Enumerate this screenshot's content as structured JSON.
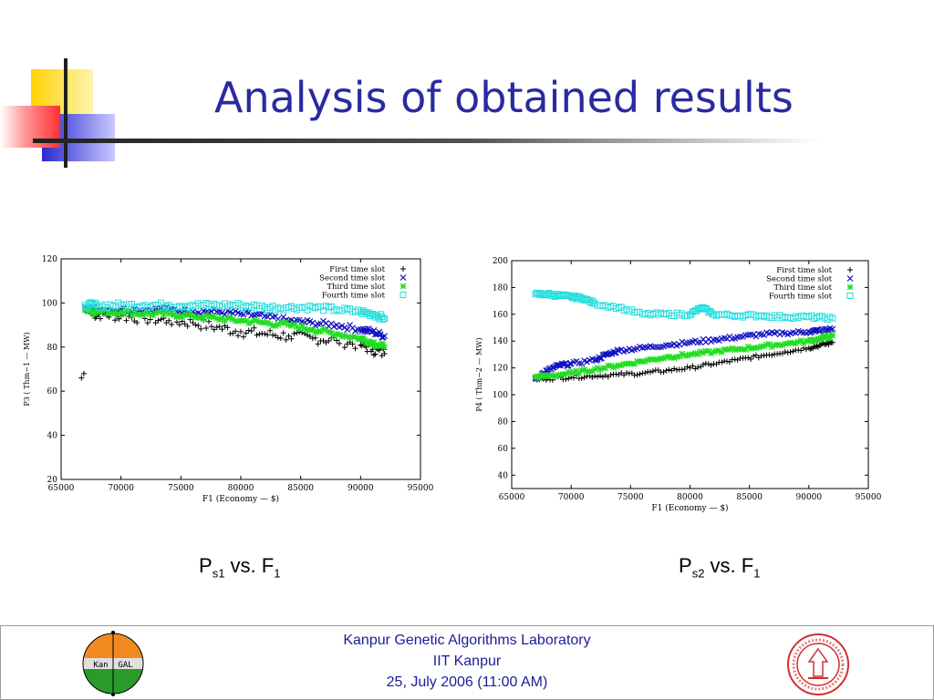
{
  "slide": {
    "title": "Analysis of obtained results",
    "caption_left": {
      "base": "P",
      "sub": "s1",
      "mid": " vs. F",
      "sub2": "1"
    },
    "caption_right": {
      "base": "P",
      "sub": "s2",
      "mid": " vs. F",
      "sub2": "1"
    }
  },
  "footer": {
    "line1": "Kanpur Genetic Algorithms Laboratory",
    "line2": "IIT Kanpur",
    "line3": "25, July 2006 (11:00 AM)",
    "logo_left_text": "Kan  GAL"
  },
  "colors": {
    "title": "#2a2aa0",
    "series_first": "#000000",
    "series_second": "#1010c0",
    "series_third": "#22dd22",
    "series_fourth": "#22dddd"
  },
  "chart_data": [
    {
      "type": "scatter",
      "xlabel": "F1 (Economy — $)",
      "ylabel": "P3 ( Thm−1 — MW)",
      "xlim": [
        65000,
        95000
      ],
      "ylim": [
        20,
        120
      ],
      "xticks": [
        65000,
        70000,
        75000,
        80000,
        85000,
        90000,
        95000
      ],
      "yticks": [
        20,
        40,
        60,
        80,
        100,
        120
      ],
      "legend_position": "top-right",
      "series": [
        {
          "name": "First time slot",
          "marker": "+",
          "x": [
            66700,
            66900,
            67500,
            68500,
            70000,
            72000,
            74000,
            76000,
            78000,
            80000,
            82000,
            84000,
            86000,
            88000,
            90000,
            91000,
            92000
          ],
          "y": [
            66,
            68,
            95,
            95,
            94,
            93,
            92,
            91,
            89,
            87,
            86,
            85,
            84,
            83,
            81,
            79,
            77
          ]
        },
        {
          "name": "Second time slot",
          "marker": "x",
          "x": [
            67000,
            68000,
            70000,
            72000,
            74000,
            76000,
            78000,
            80000,
            82000,
            84000,
            86000,
            88000,
            90000,
            91000,
            92000
          ],
          "y": [
            98,
            97,
            97,
            97,
            97,
            96,
            96,
            95,
            94,
            92,
            91,
            90,
            88,
            87,
            85
          ]
        },
        {
          "name": "Third time slot",
          "marker": "*",
          "x": [
            67000,
            68000,
            70000,
            72000,
            74000,
            76000,
            78000,
            80000,
            82000,
            84000,
            86000,
            88000,
            90000,
            91000,
            92000
          ],
          "y": [
            97,
            96,
            96,
            95,
            95,
            94,
            93,
            92,
            91,
            90,
            88,
            86,
            84,
            82,
            80
          ]
        },
        {
          "name": "Fourth time slot",
          "marker": "square",
          "x": [
            67000,
            68000,
            70000,
            72000,
            74000,
            76000,
            78000,
            80000,
            82000,
            84000,
            86000,
            88000,
            90000,
            91000,
            92000
          ],
          "y": [
            99,
            99,
            99,
            99,
            99,
            99,
            99,
            99,
            98,
            98,
            98,
            97,
            96,
            95,
            93
          ]
        }
      ]
    },
    {
      "type": "scatter",
      "xlabel": "F1 (Economy — $)",
      "ylabel": "P4 ( Thm−2 — MW)",
      "xlim": [
        65000,
        95000
      ],
      "ylim": [
        30,
        200
      ],
      "xticks": [
        65000,
        70000,
        75000,
        80000,
        85000,
        90000,
        95000
      ],
      "yticks": [
        40,
        60,
        80,
        100,
        120,
        140,
        160,
        180,
        200
      ],
      "legend_position": "top-right",
      "series": [
        {
          "name": "First time slot",
          "marker": "+",
          "x": [
            67000,
            68000,
            70000,
            72000,
            74000,
            76000,
            78000,
            80000,
            82000,
            84000,
            86000,
            88000,
            90000,
            91000,
            92000
          ],
          "y": [
            112,
            112,
            113,
            114,
            115,
            116,
            118,
            120,
            123,
            126,
            129,
            132,
            135,
            137,
            139
          ]
        },
        {
          "name": "Second time slot",
          "marker": "x",
          "x": [
            67000,
            68000,
            69000,
            70000,
            72000,
            73000,
            74000,
            76000,
            78000,
            80000,
            82000,
            84000,
            86000,
            88000,
            90000,
            91000,
            92000
          ],
          "y": [
            112,
            118,
            122,
            123,
            126,
            130,
            133,
            135,
            137,
            139,
            141,
            143,
            145,
            146,
            147,
            148,
            149
          ]
        },
        {
          "name": "Third time slot",
          "marker": "*",
          "x": [
            67000,
            68000,
            70000,
            72000,
            74000,
            76000,
            78000,
            80000,
            82000,
            84000,
            86000,
            88000,
            90000,
            91000,
            92000
          ],
          "y": [
            113,
            114,
            116,
            119,
            122,
            125,
            128,
            130,
            132,
            134,
            136,
            138,
            140,
            142,
            144
          ]
        },
        {
          "name": "Fourth time slot",
          "marker": "square",
          "x": [
            67000,
            68000,
            69000,
            70000,
            71000,
            72000,
            74000,
            76000,
            78000,
            80000,
            81000,
            82000,
            84000,
            86000,
            88000,
            90000,
            92000
          ],
          "y": [
            175,
            175,
            174,
            173,
            172,
            168,
            165,
            160,
            160,
            160,
            165,
            160,
            159,
            159,
            158,
            158,
            157
          ]
        }
      ]
    }
  ]
}
